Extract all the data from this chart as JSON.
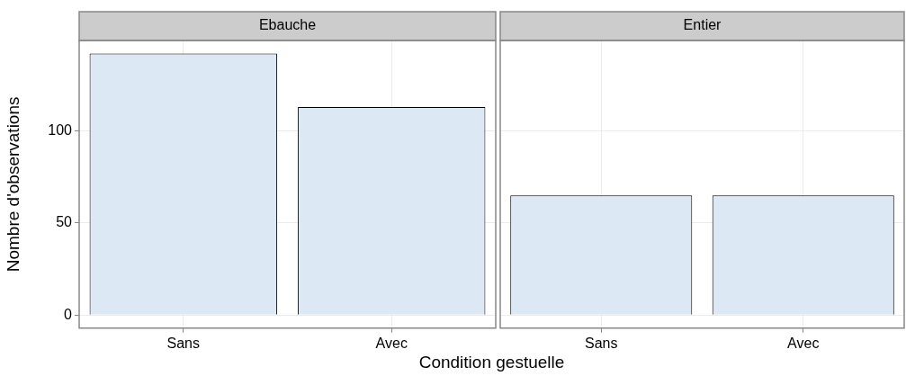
{
  "chart_data": [
    {
      "type": "bar",
      "title": "Ebauche",
      "xlabel": "Condition gestuelle",
      "ylabel": "Nombre d'observations",
      "categories": [
        "Sans",
        "Avec"
      ],
      "values": [
        142,
        113
      ],
      "color": "#dde8f5",
      "ylim": [
        -7.1,
        149.1
      ],
      "yticks": [
        0,
        50,
        100
      ],
      "grid": true
    },
    {
      "type": "bar",
      "title": "Entier",
      "categories": [
        "Sans",
        "Avec"
      ],
      "values": [
        65,
        65
      ],
      "color": "#dde8f5",
      "ylim": [
        -7.1,
        149.1
      ],
      "yticks": [
        0,
        50,
        100
      ],
      "grid": true,
      "tick_labels": "x"
    }
  ]
}
